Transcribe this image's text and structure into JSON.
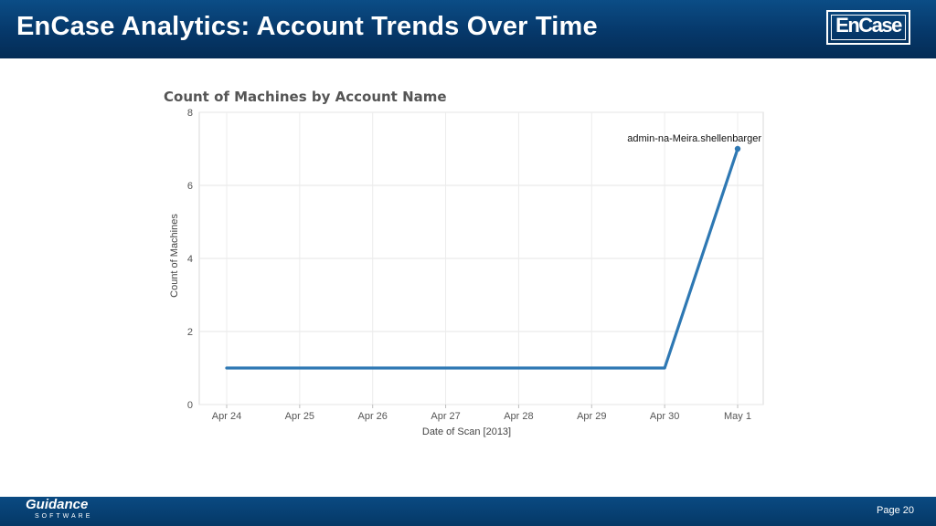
{
  "slide": {
    "title": "EnCase Analytics: Account Trends Over Time",
    "logo_text": "EnCase",
    "footer_brand": "Guidance",
    "footer_sub": "SOFTWARE",
    "page_label": "Page 20"
  },
  "chart_data": {
    "type": "line",
    "title": "Count of Machines by Account Name",
    "xlabel": "Date of Scan [2013]",
    "ylabel": "Count of Machines",
    "categories": [
      "Apr 24",
      "Apr 25",
      "Apr 26",
      "Apr 27",
      "Apr 28",
      "Apr 29",
      "Apr 30",
      "May 1"
    ],
    "series": [
      {
        "name": "admin-na-Meira.shellenbarger",
        "values": [
          1,
          1,
          1,
          1,
          1,
          1,
          1,
          7
        ],
        "color": "#2e78b3"
      }
    ],
    "annotation": "admin-na-Meira.shellenbarger",
    "ylim": [
      0,
      8
    ],
    "yticks": [
      0,
      2,
      4,
      6,
      8
    ],
    "grid": true
  }
}
